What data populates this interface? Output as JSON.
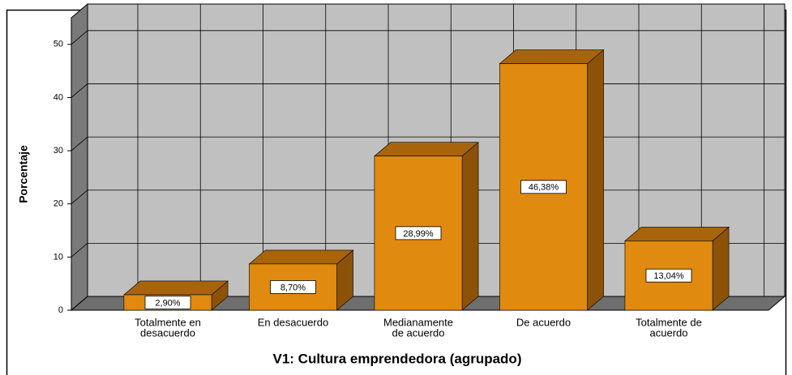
{
  "chart_data": {
    "type": "bar3d",
    "categories": [
      [
        "Totalmente en",
        "desacuerdo"
      ],
      [
        "En desacuerdo"
      ],
      [
        "Medianamente",
        "de acuerdo"
      ],
      [
        "De acuerdo"
      ],
      [
        "Totalmente de",
        "acuerdo"
      ]
    ],
    "values": [
      2.9,
      8.7,
      28.99,
      46.38,
      13.04
    ],
    "value_labels": [
      "2,90%",
      "8,70%",
      "28,99%",
      "46,38%",
      "13,04%"
    ],
    "color": "#e08a10",
    "ylim": [
      0,
      55
    ],
    "yticks": [
      0,
      10,
      20,
      30,
      40,
      50
    ],
    "grid": true,
    "ylabel": "Porcentaje",
    "xlabel": "V1: Cultura emprendedora (agrupado)"
  }
}
